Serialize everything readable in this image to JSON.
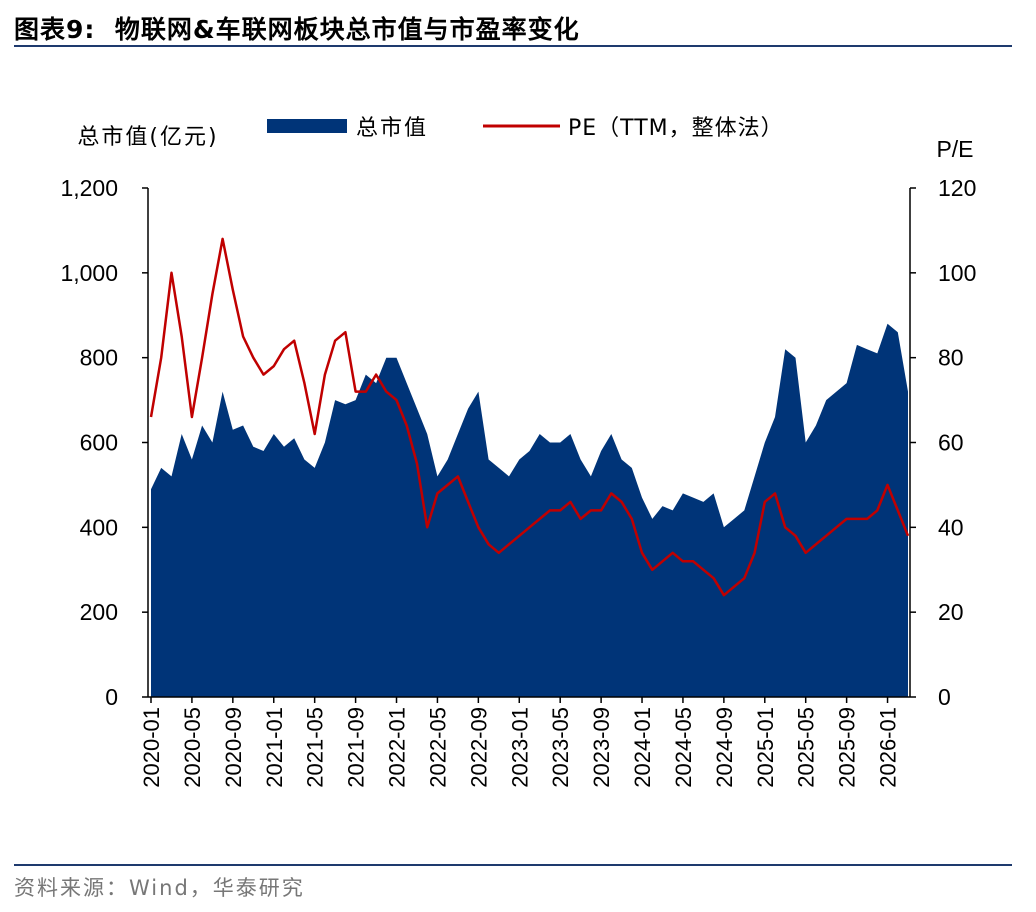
{
  "header": {
    "figure_label": "图表9:",
    "title": "物联网&车联网板块总市值与市盈率变化"
  },
  "footer": {
    "source": "资料来源：Wind，华泰研究"
  },
  "colors": {
    "area": "#003478",
    "line": "#C00000",
    "rule": "#1e3a6e"
  },
  "chart_data": {
    "type": "area",
    "left_axis": {
      "label": "总市值(亿元)",
      "min": 0,
      "max": 1200,
      "ticks": [
        "0",
        "200",
        "400",
        "600",
        "800",
        "1,000",
        "1,200"
      ]
    },
    "right_axis": {
      "label": "P/E",
      "min": 0,
      "max": 120,
      "ticks": [
        "0",
        "20",
        "40",
        "60",
        "80",
        "100",
        "120"
      ]
    },
    "x_ticks": [
      "2020-01",
      "2020-05",
      "2020-09",
      "2021-01",
      "2021-05",
      "2021-09",
      "2022-01",
      "2022-05",
      "2022-09",
      "2023-01",
      "2023-05",
      "2023-09",
      "2024-01",
      "2024-05",
      "2024-09",
      "2025-01",
      "2025-05",
      "2025-09",
      "2026-01"
    ],
    "legend": [
      "总市值",
      "PE（TTM，整体法）"
    ],
    "legend_position": "top",
    "series": [
      {
        "name": "总市值",
        "type": "area",
        "axis": "left",
        "x": [
          "2020-01",
          "2020-02",
          "2020-03",
          "2020-04",
          "2020-05",
          "2020-06",
          "2020-07",
          "2020-08",
          "2020-09",
          "2020-10",
          "2020-11",
          "2020-12",
          "2021-01",
          "2021-02",
          "2021-03",
          "2021-04",
          "2021-05",
          "2021-06",
          "2021-07",
          "2021-08",
          "2021-09",
          "2021-10",
          "2021-11",
          "2021-12",
          "2022-01",
          "2022-02",
          "2022-03",
          "2022-04",
          "2022-05",
          "2022-06",
          "2022-07",
          "2022-08",
          "2022-09",
          "2022-10",
          "2022-11",
          "2022-12",
          "2023-01",
          "2023-02",
          "2023-03",
          "2023-04",
          "2023-05",
          "2023-06",
          "2023-07",
          "2023-08",
          "2023-09",
          "2023-10",
          "2023-11",
          "2023-12",
          "2024-01",
          "2024-02",
          "2024-03",
          "2024-04",
          "2024-05",
          "2024-06",
          "2024-07",
          "2024-08",
          "2024-09",
          "2024-10",
          "2024-11",
          "2024-12",
          "2025-01",
          "2025-02",
          "2025-03",
          "2025-04",
          "2025-05",
          "2025-06",
          "2025-07",
          "2025-08",
          "2025-09",
          "2025-10",
          "2025-11",
          "2025-12",
          "2026-01",
          "2026-02",
          "2026-03"
        ],
        "values": [
          490,
          540,
          520,
          620,
          560,
          640,
          600,
          720,
          630,
          640,
          590,
          580,
          620,
          590,
          610,
          560,
          540,
          600,
          700,
          690,
          700,
          760,
          740,
          800,
          800,
          740,
          680,
          620,
          520,
          560,
          620,
          680,
          720,
          560,
          540,
          520,
          560,
          580,
          620,
          600,
          600,
          620,
          560,
          520,
          580,
          620,
          560,
          540,
          470,
          420,
          450,
          440,
          480,
          470,
          460,
          480,
          400,
          420,
          440,
          520,
          600,
          660,
          820,
          800,
          600,
          640,
          700,
          720,
          740,
          830,
          820,
          810,
          880,
          860,
          720
        ]
      },
      {
        "name": "PE（TTM，整体法）",
        "type": "line",
        "axis": "right",
        "x": [
          "2020-01",
          "2020-02",
          "2020-03",
          "2020-04",
          "2020-05",
          "2020-06",
          "2020-07",
          "2020-08",
          "2020-09",
          "2020-10",
          "2020-11",
          "2020-12",
          "2021-01",
          "2021-02",
          "2021-03",
          "2021-04",
          "2021-05",
          "2021-06",
          "2021-07",
          "2021-08",
          "2021-09",
          "2021-10",
          "2021-11",
          "2021-12",
          "2022-01",
          "2022-02",
          "2022-03",
          "2022-04",
          "2022-05",
          "2022-06",
          "2022-07",
          "2022-08",
          "2022-09",
          "2022-10",
          "2022-11",
          "2022-12",
          "2023-01",
          "2023-02",
          "2023-03",
          "2023-04",
          "2023-05",
          "2023-06",
          "2023-07",
          "2023-08",
          "2023-09",
          "2023-10",
          "2023-11",
          "2023-12",
          "2024-01",
          "2024-02",
          "2024-03",
          "2024-04",
          "2024-05",
          "2024-06",
          "2024-07",
          "2024-08",
          "2024-09",
          "2024-10",
          "2024-11",
          "2024-12",
          "2025-01",
          "2025-02",
          "2025-03",
          "2025-04",
          "2025-05",
          "2025-06",
          "2025-07",
          "2025-08",
          "2025-09",
          "2025-10",
          "2025-11",
          "2025-12",
          "2026-01",
          "2026-02",
          "2026-03"
        ],
        "values": [
          66,
          80,
          100,
          85,
          66,
          80,
          95,
          108,
          96,
          85,
          80,
          76,
          78,
          82,
          84,
          74,
          62,
          76,
          84,
          86,
          72,
          72,
          76,
          72,
          70,
          64,
          55,
          40,
          48,
          50,
          52,
          46,
          40,
          36,
          34,
          36,
          38,
          40,
          42,
          44,
          44,
          46,
          42,
          44,
          44,
          48,
          46,
          42,
          34,
          30,
          32,
          34,
          32,
          32,
          30,
          28,
          24,
          26,
          28,
          34,
          46,
          48,
          40,
          38,
          34,
          36,
          38,
          40,
          42,
          42,
          42,
          44,
          50,
          44,
          38
        ]
      }
    ]
  }
}
